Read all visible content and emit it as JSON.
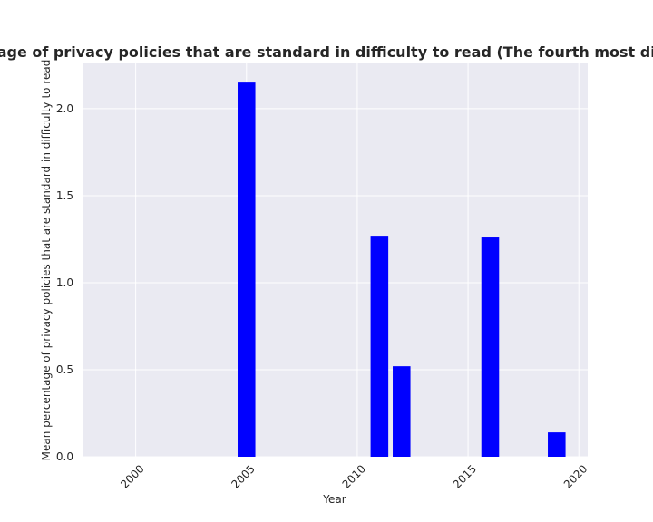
{
  "chart_data": {
    "type": "bar",
    "title": "Mean percentage of privacy policies that are standard in difficulty to read (The fourth most difficult measure)",
    "xlabel": "Year",
    "ylabel": "Mean percentage of privacy policies that are standard in difficulty to read",
    "x": [
      2005,
      2011,
      2012,
      2016,
      2019
    ],
    "values": [
      2.15,
      1.27,
      0.52,
      1.26,
      0.14
    ],
    "xlim": [
      1997.6,
      2020.4
    ],
    "ylim": [
      0,
      2.26
    ],
    "xticks": [
      2000,
      2005,
      2010,
      2015,
      2020
    ],
    "yticks": [
      "0.0",
      "0.5",
      "1.0",
      "1.5",
      "2.0"
    ],
    "grid": true,
    "background_color": "#EAEAF2",
    "bar_color": "#0000FF",
    "bar_width_years": 0.8
  }
}
